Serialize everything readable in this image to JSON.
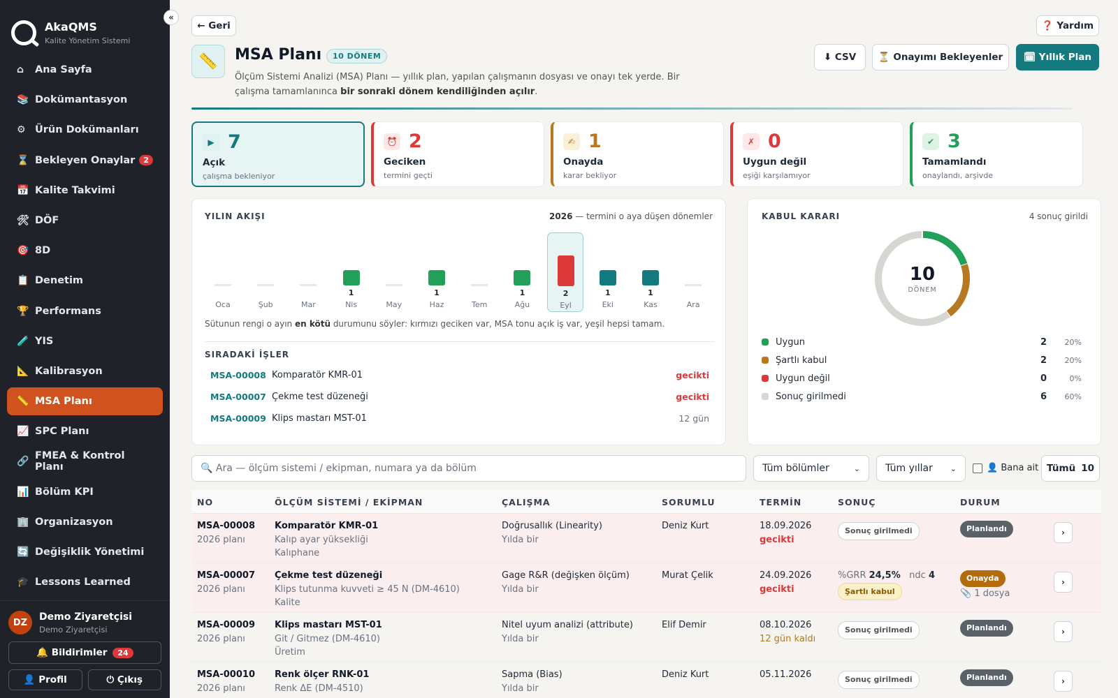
{
  "brand": {
    "name": "AkaQMS",
    "subtitle": "Kalite Yönetim Sistemi",
    "collapse": "«"
  },
  "sidebar": {
    "items": [
      {
        "icon": "⌂",
        "label": "Ana Sayfa"
      },
      {
        "icon": "📚",
        "label": "Dokümantasyon"
      },
      {
        "icon": "⚙",
        "label": "Ürün Dokümanları"
      },
      {
        "icon": "⌛",
        "label": "Bekleyen Onaylar",
        "badge": "2"
      },
      {
        "icon": "📅",
        "label": "Kalite Takvimi"
      },
      {
        "icon": "🛠",
        "label": "DÖF"
      },
      {
        "icon": "🎯",
        "label": "8D"
      },
      {
        "icon": "📋",
        "label": "Denetim"
      },
      {
        "icon": "🏆",
        "label": "Performans"
      },
      {
        "icon": "🧪",
        "label": "YIS"
      },
      {
        "icon": "📐",
        "label": "Kalibrasyon"
      },
      {
        "icon": "📏",
        "label": "MSA Planı",
        "active": true
      },
      {
        "icon": "📈",
        "label": "SPC Planı"
      },
      {
        "icon": "🔗",
        "label": "FMEA & Kontrol Planı"
      },
      {
        "icon": "📊",
        "label": "Bölüm KPI"
      },
      {
        "icon": "🏢",
        "label": "Organizasyon"
      },
      {
        "icon": "🔄",
        "label": "Değişiklik Yönetimi"
      },
      {
        "icon": "🎓",
        "label": "Lessons Learned"
      }
    ]
  },
  "user": {
    "initials": "DZ",
    "name": "Demo Ziyaretçisi",
    "role": "Demo Ziyaretçisi",
    "notifications_label": "🔔 Bildirimler",
    "notifications_count": "24",
    "profile_label": "👤 Profil",
    "logout_label": "⏻ Çıkış"
  },
  "header": {
    "back_label": "← Geri",
    "help_label": "❓ Yardım",
    "title": "MSA Planı",
    "title_icon": "📏",
    "badge": "10 DÖNEM",
    "description_1": "Ölçüm Sistemi Analizi (MSA) Planı — yıllık plan, yapılan çalışmanın dosyası ve onayı tek yerde. Bir çalışma tamamlanınca ",
    "description_bold": "bir sonraki dönem kendiliğinden açılır",
    "description_2": ".",
    "csv_label": "⬇ CSV",
    "pending_label": "⏳ Onayımı Bekleyenler",
    "yearly_label": "🗓 Yıllık Plan"
  },
  "stats": [
    {
      "icon": "▶",
      "value": "7",
      "label": "Açık",
      "sub": "çalışma bekleniyor",
      "color": "#137a80",
      "bg": "#dff1f1"
    },
    {
      "icon": "⏰",
      "value": "2",
      "label": "Geciken",
      "sub": "termini geçti",
      "color": "#dc3a3a",
      "bg": "#fde7e7"
    },
    {
      "icon": "✍",
      "value": "1",
      "label": "Onayda",
      "sub": "karar bekliyor",
      "color": "#b7791f",
      "bg": "#fbf0d8"
    },
    {
      "icon": "✗",
      "value": "0",
      "label": "Uygun değil",
      "sub": "eşiği karşılamıyor",
      "color": "#dc3a3a",
      "bg": "#fde7e7"
    },
    {
      "icon": "✔",
      "value": "3",
      "label": "Tamamlandı",
      "sub": "onaylandı, arşivde",
      "color": "#22a05a",
      "bg": "#dcf3e5"
    }
  ],
  "flow": {
    "title": "YILIN AKIŞI",
    "year": "2026",
    "year_note": " — termini o aya düşen dönemler",
    "months": [
      {
        "label": "Oca",
        "count": 0,
        "color": ""
      },
      {
        "label": "Şub",
        "count": 0,
        "color": ""
      },
      {
        "label": "Mar",
        "count": 0,
        "color": ""
      },
      {
        "label": "Nis",
        "count": 1,
        "color": "#22a05a"
      },
      {
        "label": "May",
        "count": 0,
        "color": ""
      },
      {
        "label": "Haz",
        "count": 1,
        "color": "#22a05a"
      },
      {
        "label": "Tem",
        "count": 0,
        "color": ""
      },
      {
        "label": "Ağu",
        "count": 1,
        "color": "#22a05a"
      },
      {
        "label": "Eyl",
        "count": 2,
        "color": "#dc3a3a",
        "highlight": true
      },
      {
        "label": "Eki",
        "count": 1,
        "color": "#137a80"
      },
      {
        "label": "Kas",
        "count": 1,
        "color": "#137a80"
      },
      {
        "label": "Ara",
        "count": 0,
        "color": ""
      }
    ],
    "note_1": "Sütunun rengi o ayın ",
    "note_bold": "en kötü",
    "note_2": " durumunu söyler: kırmızı geciken var, MSA tonu açık iş var, yeşil hepsi tamam."
  },
  "queue": {
    "title": "SIRADAKİ İŞLER",
    "items": [
      {
        "no": "MSA-00008",
        "name": "Komparatör KMR-01",
        "status": "gecikti",
        "late": true
      },
      {
        "no": "MSA-00007",
        "name": "Çekme test düzeneği",
        "status": "gecikti",
        "late": true
      },
      {
        "no": "MSA-00009",
        "name": "Klips mastarı MST-01",
        "status": "12 gün",
        "late": false
      }
    ]
  },
  "decision": {
    "title": "KABUL KARARI",
    "note": "4 sonuç girildi",
    "total": "10",
    "total_label": "DÖNEM",
    "items": [
      {
        "name": "Uygun",
        "count": 2,
        "pct": "20%",
        "color": "#22a05a"
      },
      {
        "name": "Şartlı kabul",
        "count": 2,
        "pct": "20%",
        "color": "#b7791f"
      },
      {
        "name": "Uygun değil",
        "count": 0,
        "pct": "0%",
        "color": "#dc3a3a"
      },
      {
        "name": "Sonuç girilmedi",
        "count": 6,
        "pct": "60%",
        "color": "#d6d6d3"
      }
    ]
  },
  "filters": {
    "search_placeholder": "🔍 Ara — ölçüm sistemi / ekipman, numara ya da bölüm",
    "department": "Tüm bölümler",
    "year": "Tüm yıllar",
    "mine_label": "👤 Bana ait",
    "all_label": "Tümü",
    "all_count": "10"
  },
  "table": {
    "headers": {
      "no": "NO",
      "system": "ÖLÇÜM SİSTEMİ / EKİPMAN",
      "study": "ÇALIŞMA",
      "owner": "SORUMLU",
      "due": "TERMİN",
      "result": "SONUÇ",
      "status": "DURUM"
    },
    "rows": [
      {
        "no": "MSA-00008",
        "plan": "2026 planı",
        "system": "Komparatör KMR-01",
        "detail": "Kalıp ayar yüksekliği",
        "dept": "Kalıphane",
        "study": "Doğrusallık (Linearity)",
        "freq": "Yılda bir",
        "owner": "Deniz Kurt",
        "due": "18.09.2026",
        "due_note": "gecikti",
        "result": "Sonuç girilmedi",
        "status": "Planlandı"
      },
      {
        "no": "MSA-00007",
        "plan": "2026 planı",
        "system": "Çekme test düzeneği",
        "detail": "Klips tutunma kuvveti ≥ 45 N (DM-4610)",
        "dept": "Kalite",
        "study": "Gage R&R (değişken ölçüm)",
        "freq": "Yılda bir",
        "owner": "Murat Çelik",
        "due": "24.09.2026",
        "due_note": "gecikti",
        "grr_label": "%GRR",
        "grr_value": "24,5%",
        "ndc_label": "ndc",
        "ndc_value": "4",
        "decision": "Şartlı kabul",
        "status": "Onayda",
        "files": "📎 1 dosya"
      },
      {
        "no": "MSA-00009",
        "plan": "2026 planı",
        "system": "Klips mastarı MST-01",
        "detail": "Git / Gitmez (DM-4610)",
        "dept": "Üretim",
        "study": "Nitel uyum analizi (attribute)",
        "freq": "Yılda bir",
        "owner": "Elif Demir",
        "due": "08.10.2026",
        "due_note": "12 gün kaldı",
        "result": "Sonuç girilmedi",
        "status": "Planlandı"
      },
      {
        "no": "MSA-00010",
        "plan": "2026 planı",
        "system": "Renk ölçer RNK-01",
        "detail": "Renk ΔE (DM-4510)",
        "study": "Sapma (Bias)",
        "freq": "Yılda bir",
        "owner": "Deniz Kurt",
        "due": "05.11.2026",
        "result": "Sonuç girilmedi",
        "status": "Planlandı"
      }
    ]
  }
}
